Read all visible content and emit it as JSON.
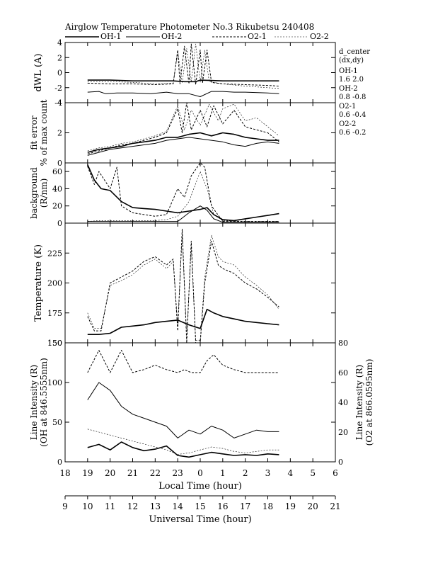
{
  "title": "Airglow Temperature Photometer No.3  Rikubetsu   240408",
  "legend": [
    "OH-1",
    "OH-2",
    "O2-1",
    "O2-2"
  ],
  "side_notes": {
    "header": [
      "d_center",
      "(dx,dy)"
    ],
    "rows": [
      {
        "label": "OH-1",
        "vals": "1.6   2.0"
      },
      {
        "label": "OH-2",
        "vals": "0.8  -0.8"
      },
      {
        "label": "O2-1",
        "vals": "0.6  -0.4"
      },
      {
        "label": "O2-2",
        "vals": "0.6  -0.2"
      }
    ]
  },
  "chart_data": {
    "type": "line",
    "x_local": {
      "label": "Local Time (hour)",
      "ticks": [
        "18",
        "19",
        "20",
        "21",
        "22",
        "23",
        "0",
        "1",
        "2",
        "3",
        "4",
        "5",
        "6"
      ]
    },
    "x_universal": {
      "label": "Universal Time (hour)",
      "ticks": [
        "9",
        "10",
        "11",
        "12",
        "13",
        "14",
        "15",
        "16",
        "17",
        "18",
        "19",
        "20",
        "21"
      ]
    },
    "panels": [
      {
        "name": "dwl",
        "ylabel": [
          "dWL (A)"
        ],
        "ylim": [
          -4,
          4
        ],
        "ticks": [
          "-4",
          "-2",
          "0",
          "2",
          "4"
        ],
        "series": [
          {
            "name": "OH-1",
            "x": [
              19.0,
              20.0,
              21.0,
              22.0,
              22.8,
              23.3,
              23.8,
              24.0,
              25.0,
              26.0,
              27.0,
              27.5
            ],
            "y": [
              -1.0,
              -1.0,
              -1.1,
              -1.1,
              -1.1,
              -1.2,
              -1.2,
              -1.0,
              -1.1,
              -1.1,
              -1.1,
              -1.1
            ]
          },
          {
            "name": "OH-2",
            "x": [
              19.0,
              19.5,
              19.8,
              20.3,
              21.0,
              21.8,
              22.5,
              23.0,
              23.5,
              24.0,
              24.5,
              25.0,
              25.5,
              26.0,
              27.0,
              27.5
            ],
            "y": [
              -2.6,
              -2.5,
              -2.8,
              -2.7,
              -2.7,
              -2.8,
              -2.6,
              -2.8,
              -2.8,
              -3.2,
              -2.5,
              -2.5,
              -2.6,
              -2.6,
              -2.7,
              -2.8
            ]
          },
          {
            "name": "O2-1",
            "x": [
              19.0,
              20.0,
              21.0,
              22.0,
              22.8,
              23.0,
              23.1,
              23.3,
              23.5,
              23.6,
              23.8,
              24.0,
              24.1,
              24.3,
              24.5,
              25.0,
              26.0,
              27.0,
              27.5
            ],
            "y": [
              -1.4,
              -1.5,
              -1.5,
              -1.6,
              -1.5,
              3.0,
              -1.5,
              3.5,
              -1.5,
              3.8,
              -1.6,
              3.0,
              -1.4,
              3.0,
              -1.3,
              -1.5,
              -1.6,
              -1.7,
              -1.8
            ]
          },
          {
            "name": "O2-2",
            "x": [
              19.0,
              20.0,
              21.0,
              22.0,
              22.8,
              23.0,
              23.2,
              23.4,
              23.6,
              23.8,
              24.0,
              24.2,
              24.4,
              25.0,
              26.0,
              27.0,
              27.5
            ],
            "y": [
              -1.2,
              -1.2,
              -1.3,
              -1.5,
              -1.4,
              2.8,
              -1.4,
              3.2,
              -1.2,
              3.8,
              -1.3,
              3.0,
              -1.2,
              -1.5,
              -1.8,
              -2.0,
              -2.1
            ]
          }
        ]
      },
      {
        "name": "fit_error",
        "ylabel": [
          "fit error",
          "% of max count"
        ],
        "ylim": [
          0,
          4
        ],
        "ticks": [
          "0",
          "2",
          "4"
        ],
        "series": [
          {
            "name": "OH-1",
            "x": [
              19.0,
              19.5,
              20.0,
              20.5,
              21.0,
              21.5,
              22.0,
              22.5,
              23.0,
              23.5,
              24.0,
              24.5,
              25.0,
              25.5,
              26.0,
              26.5,
              27.0,
              27.5
            ],
            "y": [
              0.7,
              0.9,
              1.0,
              1.1,
              1.3,
              1.4,
              1.5,
              1.7,
              1.7,
              1.9,
              2.0,
              1.8,
              2.0,
              1.9,
              1.7,
              1.6,
              1.5,
              1.5
            ]
          },
          {
            "name": "OH-2",
            "x": [
              19.0,
              19.5,
              20.0,
              20.5,
              21.0,
              21.5,
              22.0,
              22.5,
              23.0,
              23.5,
              24.0,
              24.5,
              25.0,
              25.5,
              26.0,
              26.5,
              27.0,
              27.5
            ],
            "y": [
              0.5,
              0.7,
              0.9,
              1.0,
              1.1,
              1.2,
              1.3,
              1.5,
              1.6,
              1.7,
              1.6,
              1.5,
              1.4,
              1.2,
              1.1,
              1.3,
              1.4,
              1.3
            ]
          },
          {
            "name": "O2-1",
            "x": [
              19.0,
              19.5,
              20.0,
              20.5,
              21.0,
              21.5,
              22.0,
              22.5,
              23.0,
              23.2,
              23.4,
              23.6,
              24.0,
              24.3,
              24.6,
              25.0,
              25.5,
              26.0,
              26.5,
              27.0,
              27.5
            ],
            "y": [
              0.6,
              0.8,
              1.0,
              1.2,
              1.3,
              1.5,
              1.7,
              2.0,
              3.6,
              2.0,
              4.0,
              2.2,
              3.5,
              2.4,
              3.8,
              2.6,
              3.5,
              2.4,
              2.2,
              2.0,
              1.4
            ]
          },
          {
            "name": "O2-2",
            "x": [
              19.0,
              19.5,
              20.0,
              20.5,
              21.0,
              21.5,
              22.0,
              22.5,
              23.0,
              23.3,
              23.6,
              24.0,
              24.4,
              24.8,
              25.0,
              25.5,
              26.0,
              26.5,
              27.0,
              27.5
            ],
            "y": [
              0.8,
              1.0,
              1.1,
              1.3,
              1.4,
              1.6,
              1.8,
              2.1,
              3.8,
              2.2,
              3.5,
              2.5,
              3.9,
              2.8,
              3.6,
              3.9,
              2.8,
              3.0,
              2.4,
              1.8
            ]
          }
        ]
      },
      {
        "name": "background",
        "ylabel": [
          "background",
          "(R/nm)"
        ],
        "ylim": [
          0,
          70
        ],
        "ticks": [
          "0",
          "20",
          "40",
          "60"
        ],
        "series": [
          {
            "name": "OH-1",
            "x": [
              19.0,
              19.3,
              19.6,
              20.0,
              20.5,
              21.0,
              21.5,
              22.0,
              22.5,
              23.0,
              23.5,
              24.0,
              24.3,
              24.6,
              25.0,
              25.5,
              26.0,
              26.5,
              27.0,
              27.5
            ],
            "y": [
              68,
              50,
              40,
              38,
              25,
              18,
              17,
              16,
              14,
              12,
              14,
              16,
              18,
              10,
              4,
              3,
              5,
              7,
              9,
              11
            ]
          },
          {
            "name": "OH-2",
            "x": [
              19.0,
              19.5,
              20.0,
              20.5,
              21.0,
              21.5,
              22.0,
              22.5,
              23.0,
              23.5,
              24.0,
              24.3,
              24.6,
              25.0,
              26.0,
              27.0,
              27.5
            ],
            "y": [
              2,
              2,
              2,
              2,
              2,
              2,
              2,
              2,
              2,
              12,
              20,
              15,
              5,
              1,
              1,
              1,
              1
            ]
          },
          {
            "name": "O2-1",
            "x": [
              19.0,
              19.3,
              19.5,
              20.0,
              20.3,
              20.5,
              21.0,
              21.5,
              22.0,
              22.5,
              23.0,
              23.3,
              23.6,
              24.0,
              24.2,
              24.5,
              25.0,
              26.0,
              27.0,
              27.5
            ],
            "y": [
              66,
              45,
              60,
              40,
              65,
              20,
              12,
              10,
              8,
              10,
              40,
              30,
              55,
              70,
              65,
              20,
              2,
              2,
              2,
              2
            ]
          },
          {
            "name": "O2-2",
            "x": [
              19.0,
              19.5,
              20.0,
              20.5,
              21.0,
              21.5,
              22.0,
              22.5,
              23.0,
              23.5,
              24.0,
              24.3,
              24.6,
              25.0,
              26.0,
              27.0,
              27.5
            ],
            "y": [
              2,
              3,
              3,
              3,
              3,
              3,
              3,
              4,
              8,
              25,
              60,
              40,
              10,
              3,
              2,
              2,
              2
            ]
          }
        ]
      },
      {
        "name": "temperature",
        "ylabel": [
          "Temperature (K)"
        ],
        "ylim": [
          150,
          250
        ],
        "ticks": [
          "150",
          "175",
          "200",
          "225"
        ],
        "series": [
          {
            "name": "OH-1",
            "x": [
              19.0,
              19.5,
              20.0,
              20.5,
              21.0,
              21.5,
              22.0,
              22.5,
              23.0,
              23.5,
              24.0,
              24.3,
              24.6,
              25.0,
              25.5,
              26.0,
              26.5,
              27.0,
              27.5
            ],
            "y": [
              157,
              157,
              158,
              163,
              164,
              165,
              167,
              168,
              169,
              165,
              162,
              178,
              175,
              172,
              170,
              168,
              167,
              166,
              165
            ]
          },
          {
            "name": "O2-1",
            "x": [
              19.0,
              19.3,
              19.6,
              20.0,
              20.5,
              21.0,
              21.5,
              22.0,
              22.5,
              22.8,
              23.0,
              23.2,
              23.4,
              23.6,
              23.8,
              24.0,
              24.2,
              24.5,
              24.8,
              25.0,
              25.5,
              26.0,
              26.5,
              27.0,
              27.5
            ],
            "y": [
              172,
              160,
              160,
              200,
              205,
              210,
              218,
              222,
              215,
              220,
              160,
              245,
              150,
              235,
              150,
              150,
              200,
              235,
              215,
              212,
              208,
              200,
              195,
              188,
              180
            ]
          },
          {
            "name": "O2-2",
            "x": [
              19.0,
              19.3,
              19.6,
              20.0,
              20.5,
              21.0,
              21.5,
              22.0,
              22.5,
              22.8,
              23.0,
              23.2,
              23.4,
              23.6,
              23.8,
              24.0,
              24.2,
              24.5,
              24.8,
              25.0,
              25.5,
              26.0,
              26.5,
              27.0,
              27.5
            ],
            "y": [
              175,
              162,
              162,
              198,
              202,
              207,
              215,
              220,
              212,
              218,
              165,
              240,
              155,
              230,
              152,
              152,
              205,
              240,
              222,
              218,
              215,
              205,
              198,
              190,
              178
            ]
          }
        ]
      },
      {
        "name": "intensity",
        "ylabel_left": [
          "Line Intensity (R)",
          "(OH at 846.5555nm)"
        ],
        "ylabel_right": [
          "Line Intensity (R)",
          "(O2 at 866.0595nm)"
        ],
        "ylim_left": [
          0,
          150
        ],
        "ylim_right": [
          0,
          80
        ],
        "ticks_left": [
          "0",
          "50",
          "100",
          "150"
        ],
        "ticks_right": [
          "0",
          "20",
          "40",
          "60",
          "80"
        ],
        "series": [
          {
            "name": "OH-1",
            "axis": "left",
            "x": [
              19.0,
              19.5,
              20.0,
              20.5,
              21.0,
              21.5,
              22.0,
              22.5,
              23.0,
              23.5,
              24.0,
              24.5,
              25.0,
              25.5,
              26.0,
              26.5,
              27.0,
              27.5
            ],
            "y": [
              18,
              22,
              15,
              25,
              18,
              14,
              16,
              20,
              8,
              6,
              9,
              12,
              10,
              8,
              9,
              8,
              10,
              9
            ]
          },
          {
            "name": "OH-2",
            "axis": "left",
            "x": [
              19.0,
              19.5,
              20.0,
              20.5,
              21.0,
              21.5,
              22.0,
              22.5,
              23.0,
              23.5,
              24.0,
              24.5,
              25.0,
              25.5,
              26.0,
              26.5,
              27.0,
              27.5
            ],
            "y": [
              78,
              100,
              90,
              70,
              60,
              55,
              50,
              45,
              30,
              40,
              35,
              45,
              40,
              30,
              35,
              40,
              38,
              38
            ]
          },
          {
            "name": "O2-1",
            "axis": "right",
            "x": [
              19.0,
              19.5,
              20.0,
              20.5,
              21.0,
              21.5,
              22.0,
              22.5,
              23.0,
              23.3,
              23.6,
              24.0,
              24.3,
              24.6,
              25.0,
              25.5,
              26.0,
              26.5,
              27.0,
              27.5
            ],
            "y": [
              60,
              75,
              60,
              75,
              60,
              62,
              65,
              62,
              60,
              62,
              60,
              60,
              68,
              72,
              65,
              62,
              60,
              60,
              60,
              60
            ]
          },
          {
            "name": "O2-2",
            "axis": "right",
            "x": [
              19.0,
              19.5,
              20.0,
              20.5,
              21.0,
              21.5,
              22.0,
              22.5,
              23.0,
              23.5,
              24.0,
              24.5,
              25.0,
              25.5,
              26.0,
              26.5,
              27.0,
              27.5
            ],
            "y": [
              22,
              20,
              18,
              16,
              14,
              12,
              10,
              8,
              5,
              6,
              8,
              10,
              9,
              7,
              6,
              7,
              8,
              8
            ]
          }
        ]
      }
    ]
  }
}
